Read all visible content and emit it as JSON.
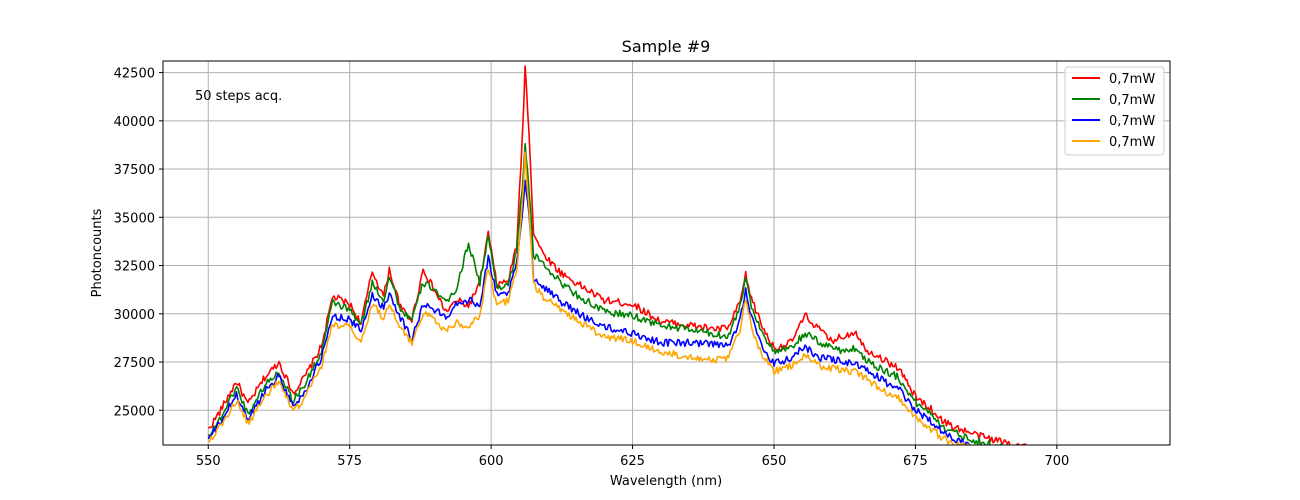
{
  "chart_data": {
    "type": "line",
    "title": "Sample #9",
    "xlabel": "Wavelength (nm)",
    "ylabel": "Photoncounts",
    "annotation": "50 steps acq.",
    "xlim": [
      542,
      720
    ],
    "ylim": [
      23200,
      43100
    ],
    "xticks": [
      550,
      575,
      600,
      625,
      650,
      675,
      700
    ],
    "yticks": [
      25000,
      27500,
      30000,
      32500,
      35000,
      37500,
      40000,
      42500
    ],
    "grid": true,
    "legend_position": "top-right",
    "series": [
      {
        "name": "0,7mW",
        "color": "#ff0000",
        "x": [
          550,
          552,
          555,
          557,
          560,
          562.5,
          565,
          567,
          570,
          572,
          575,
          577,
          579,
          581,
          582,
          584,
          586,
          588,
          590,
          592,
          594,
          596,
          598,
          599.5,
          601,
          603,
          604.5,
          605.5,
          606,
          606.7,
          607.5,
          609,
          612,
          615,
          620,
          625,
          630,
          635,
          640,
          642,
          644,
          645,
          646,
          648,
          650,
          653,
          655.5,
          658,
          660,
          662,
          664.5,
          666,
          668,
          670,
          672,
          675,
          678,
          680,
          683,
          686,
          690,
          695
        ],
        "y": [
          24000,
          24900,
          26500,
          25300,
          26700,
          27500,
          25900,
          26700,
          28300,
          30900,
          30500,
          29500,
          32200,
          30900,
          32300,
          30300,
          29700,
          32300,
          31200,
          30100,
          30700,
          30400,
          31600,
          34200,
          31500,
          31700,
          33500,
          39000,
          42800,
          39500,
          34200,
          33200,
          32200,
          31600,
          30700,
          30500,
          29600,
          29400,
          29200,
          29300,
          30600,
          32000,
          30800,
          29300,
          28200,
          28500,
          29900,
          29200,
          28600,
          28800,
          29100,
          28200,
          27900,
          27500,
          27200,
          25700,
          25000,
          24400,
          24000,
          23700,
          23400,
          23100
        ]
      },
      {
        "name": "0,7mW",
        "color": "#008000",
        "x": [
          550,
          552,
          555,
          557,
          560,
          562.5,
          565,
          567,
          570,
          572,
          575,
          577,
          579,
          581,
          582,
          584,
          586,
          588,
          590,
          592,
          594,
          596,
          598,
          599.5,
          601,
          603,
          604.5,
          605.5,
          606,
          606.7,
          607.5,
          609,
          612,
          615,
          620,
          625,
          630,
          635,
          640,
          642,
          644,
          645,
          646,
          648,
          650,
          653,
          655.5,
          658,
          660,
          662,
          664.5,
          666,
          668,
          670,
          672,
          675,
          678,
          680,
          683,
          686,
          690,
          695
        ],
        "y": [
          23700,
          24500,
          26200,
          24800,
          26300,
          27000,
          25500,
          26300,
          28000,
          30600,
          30200,
          29400,
          31600,
          30700,
          32000,
          30200,
          29700,
          31600,
          31300,
          30500,
          31400,
          33700,
          31600,
          34000,
          31400,
          31500,
          33200,
          36500,
          38900,
          36400,
          33000,
          32700,
          31700,
          31000,
          30100,
          29900,
          29400,
          29200,
          28900,
          28900,
          30400,
          31900,
          30400,
          29000,
          28000,
          28200,
          29000,
          28500,
          28300,
          28100,
          28200,
          27700,
          27300,
          27000,
          26700,
          25400,
          24800,
          24100,
          23700,
          23400,
          23100,
          22900
        ]
      },
      {
        "name": "0,7mW",
        "color": "#0000ff",
        "x": [
          550,
          552,
          555,
          557,
          560,
          562.5,
          565,
          567,
          570,
          572,
          575,
          577,
          579,
          581,
          582,
          584,
          586,
          588,
          590,
          592,
          594,
          596,
          598,
          599.5,
          601,
          603,
          604.5,
          605.5,
          606,
          606.7,
          607.5,
          609,
          612,
          615,
          620,
          625,
          630,
          635,
          640,
          642,
          644,
          645,
          646,
          648,
          650,
          653,
          655.5,
          658,
          660,
          662,
          664.5,
          666,
          668,
          670,
          672,
          675,
          678,
          680,
          683,
          686,
          690,
          695
        ],
        "y": [
          23500,
          24300,
          25800,
          24500,
          26000,
          26800,
          25200,
          25900,
          27700,
          29900,
          29700,
          29100,
          31000,
          30300,
          31100,
          29800,
          28700,
          30500,
          30200,
          29800,
          30600,
          30700,
          30500,
          32900,
          31000,
          31100,
          32500,
          35200,
          37000,
          35100,
          31900,
          31500,
          30700,
          30100,
          29300,
          29000,
          28500,
          28500,
          28400,
          28300,
          29700,
          31300,
          29900,
          28100,
          27400,
          27700,
          28300,
          27700,
          27700,
          27500,
          27400,
          27100,
          26800,
          26400,
          26100,
          25000,
          24400,
          23800,
          23400,
          23100,
          22900,
          22700
        ]
      },
      {
        "name": "0,7mW",
        "color": "#ffa500",
        "x": [
          550,
          552,
          555,
          557,
          560,
          562.5,
          565,
          567,
          570,
          572,
          575,
          577,
          579,
          581,
          582,
          584,
          586,
          588,
          590,
          592,
          594,
          596,
          598,
          599.5,
          601,
          603,
          604.5,
          605.5,
          606,
          606.7,
          607.5,
          609,
          612,
          615,
          620,
          625,
          630,
          635,
          640,
          642,
          644,
          645,
          646,
          648,
          650,
          653,
          655.5,
          658,
          660,
          662,
          664.5,
          666,
          668,
          670,
          672,
          675,
          678,
          680,
          683,
          686,
          690,
          695
        ],
        "y": [
          23400,
          24100,
          25500,
          24300,
          25700,
          26500,
          24900,
          25600,
          27300,
          29500,
          29300,
          28500,
          30500,
          29800,
          30600,
          29200,
          28500,
          30100,
          29700,
          29100,
          29600,
          29300,
          29900,
          32400,
          30400,
          30700,
          32200,
          35600,
          38300,
          35400,
          31500,
          30900,
          30300,
          29700,
          28800,
          28600,
          28000,
          27800,
          27600,
          27700,
          29200,
          30800,
          29300,
          27800,
          27000,
          27300,
          27800,
          27300,
          27200,
          27100,
          27000,
          26700,
          26300,
          25900,
          25700,
          24600,
          24000,
          23500,
          23200,
          22900,
          22700,
          22500
        ]
      }
    ]
  }
}
